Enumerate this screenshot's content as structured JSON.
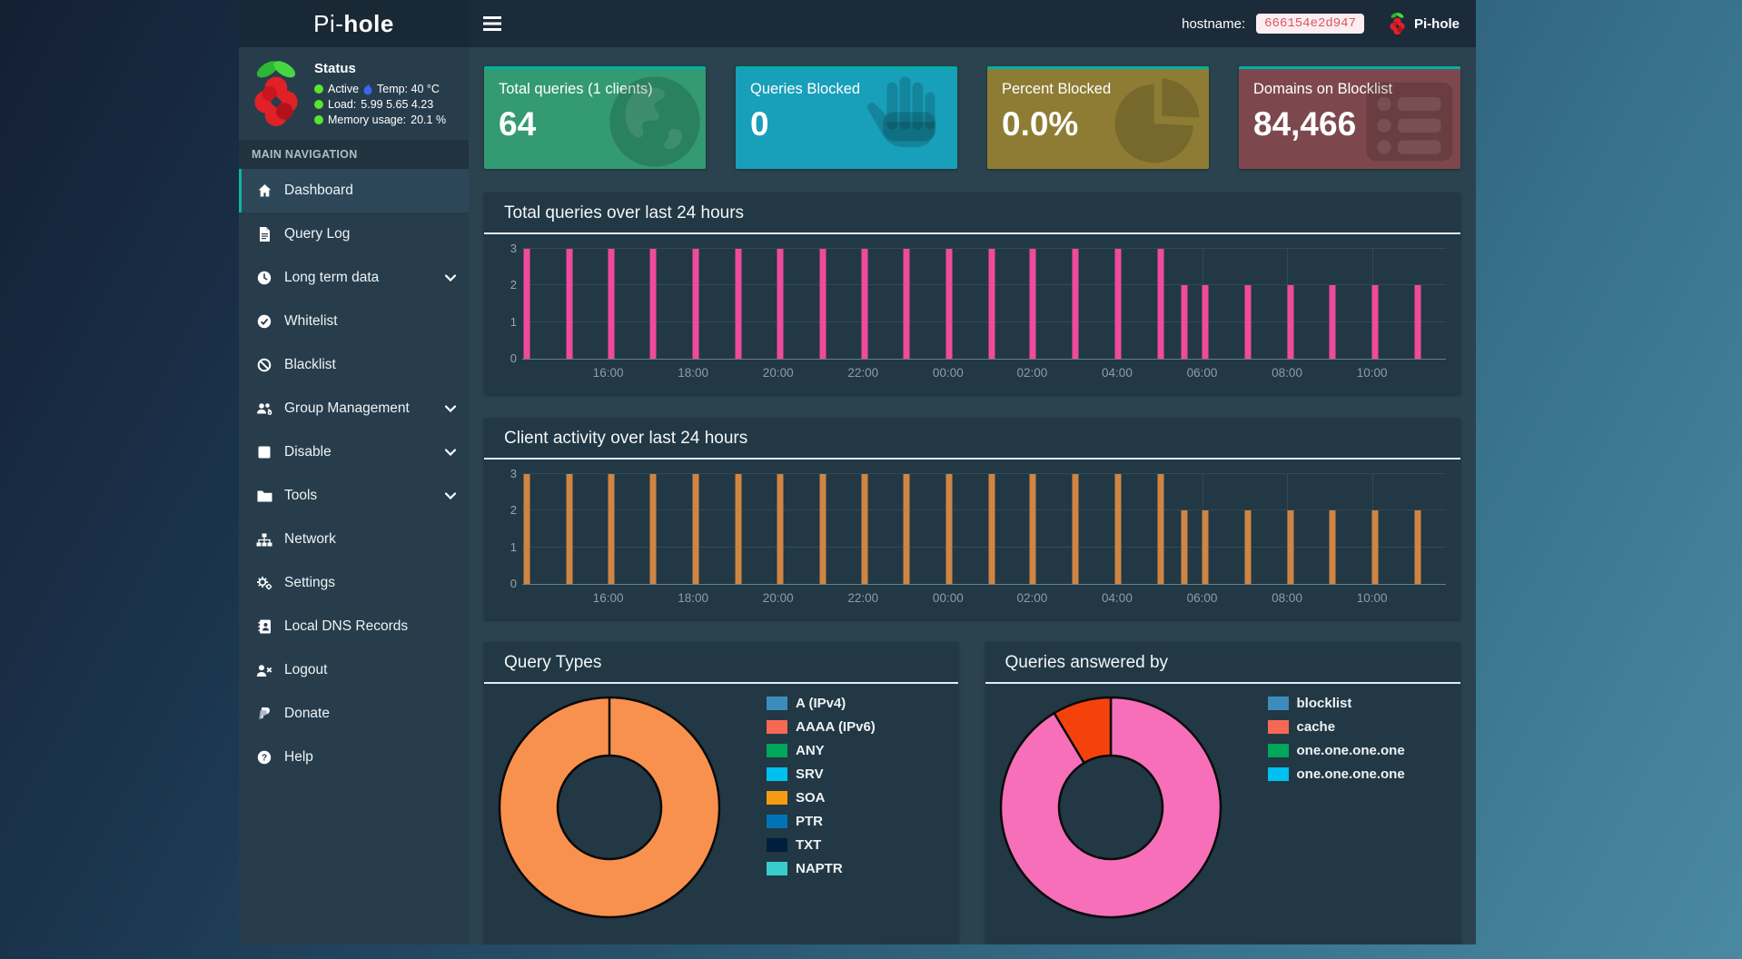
{
  "navbar": {
    "logo_prefix": "Pi-",
    "logo_bold": "hole",
    "hostname_label": "hostname:",
    "hostname_value": "666154e2d947",
    "brand": "Pi-hole"
  },
  "sidebar": {
    "status": {
      "title": "Status",
      "rows": [
        {
          "label": "Active",
          "extra": "Temp: 40 °C"
        },
        {
          "label": "Load:",
          "extra": "5.99  5.65  4.23"
        },
        {
          "label": "Memory usage:",
          "extra": "20.1 %"
        }
      ]
    },
    "section_header": "MAIN NAVIGATION",
    "items": [
      {
        "label": "Dashboard",
        "icon": "home-icon",
        "active": true
      },
      {
        "label": "Query Log",
        "icon": "file-icon"
      },
      {
        "label": "Long term data",
        "icon": "clock-icon",
        "expandable": true
      },
      {
        "label": "Whitelist",
        "icon": "check-circle-icon"
      },
      {
        "label": "Blacklist",
        "icon": "ban-icon"
      },
      {
        "label": "Group Management",
        "icon": "users-icon",
        "expandable": true
      },
      {
        "label": "Disable",
        "icon": "stop-icon",
        "expandable": true
      },
      {
        "label": "Tools",
        "icon": "folder-icon",
        "expandable": true
      },
      {
        "label": "Network",
        "icon": "sitemap-icon"
      },
      {
        "label": "Settings",
        "icon": "cogs-icon"
      },
      {
        "label": "Local DNS Records",
        "icon": "address-book-icon"
      },
      {
        "label": "Logout",
        "icon": "user-times-icon"
      },
      {
        "label": "Donate",
        "icon": "paypal-icon"
      },
      {
        "label": "Help",
        "icon": "question-circle-icon"
      }
    ]
  },
  "cards": [
    {
      "title": "Total queries (1 clients)",
      "value": "64",
      "color": "#339a72",
      "icon": "globe-icon"
    },
    {
      "title": "Queries Blocked",
      "value": "0",
      "color": "#189fba",
      "icon": "hand-icon"
    },
    {
      "title": "Percent Blocked",
      "value": "0.0%",
      "color": "#8e7c34",
      "icon": "pie-chart-icon"
    },
    {
      "title": "Domains on Blocklist",
      "value": "84,466",
      "color": "#7d484d",
      "icon": "list-icon"
    }
  ],
  "colors": {
    "accent_border": "#00b1a4",
    "active_accent": "#10b3a3",
    "status_dot": "#5ce42e",
    "panel_bg": "#223844",
    "donut_stroke": "#0a0a0a"
  },
  "chart_data": [
    {
      "type": "bar",
      "title": "Total queries over last 24 hours",
      "bar_color": "#f04a9c",
      "ylim": [
        0,
        3
      ],
      "yticks": [
        0,
        1,
        2,
        3
      ],
      "grid": true,
      "xticks": [
        "16:00",
        "18:00",
        "20:00",
        "22:00",
        "00:00",
        "02:00",
        "04:00",
        "06:00",
        "08:00",
        "10:00"
      ],
      "xtick_f": [
        0.093,
        0.185,
        0.277,
        0.369,
        0.461,
        0.552,
        0.644,
        0.736,
        0.828,
        0.92
      ],
      "bars_f": [
        0.005,
        0.051,
        0.096,
        0.142,
        0.188,
        0.234,
        0.279,
        0.325,
        0.371,
        0.416,
        0.462,
        0.508,
        0.553,
        0.599,
        0.645,
        0.691,
        0.717,
        0.739,
        0.786,
        0.832,
        0.877,
        0.923,
        0.97
      ],
      "bars_v": [
        3,
        3,
        3,
        3,
        3,
        3,
        3,
        3,
        3,
        3,
        3,
        3,
        3,
        3,
        3,
        3,
        2,
        2,
        2,
        2,
        2,
        2,
        2
      ]
    },
    {
      "type": "bar",
      "title": "Client activity over last 24 hours",
      "bar_color": "#cf8543",
      "ylim": [
        0,
        3
      ],
      "yticks": [
        0,
        1,
        2,
        3
      ],
      "grid": true,
      "xticks": [
        "16:00",
        "18:00",
        "20:00",
        "22:00",
        "00:00",
        "02:00",
        "04:00",
        "06:00",
        "08:00",
        "10:00"
      ],
      "xtick_f": [
        0.093,
        0.185,
        0.277,
        0.369,
        0.461,
        0.552,
        0.644,
        0.736,
        0.828,
        0.92
      ],
      "bars_f": [
        0.005,
        0.051,
        0.096,
        0.142,
        0.188,
        0.234,
        0.279,
        0.325,
        0.371,
        0.416,
        0.462,
        0.508,
        0.553,
        0.599,
        0.645,
        0.691,
        0.717,
        0.739,
        0.786,
        0.832,
        0.877,
        0.923,
        0.97
      ],
      "bars_v": [
        3,
        3,
        3,
        3,
        3,
        3,
        3,
        3,
        3,
        3,
        3,
        3,
        3,
        3,
        3,
        3,
        2,
        2,
        2,
        2,
        2,
        2,
        2
      ]
    },
    {
      "type": "donut",
      "title": "Query Types",
      "slices": [
        {
          "value": 100,
          "color": "#f9914e"
        }
      ],
      "legend_position": "right",
      "legend": [
        {
          "label": "A (IPv4)",
          "color": "#3c8dbc"
        },
        {
          "label": "AAAA (IPv6)",
          "color": "#f56954"
        },
        {
          "label": "ANY",
          "color": "#00a65a"
        },
        {
          "label": "SRV",
          "color": "#00c0ef"
        },
        {
          "label": "SOA",
          "color": "#f39c12"
        },
        {
          "label": "PTR",
          "color": "#0073b7"
        },
        {
          "label": "TXT",
          "color": "#001f3f"
        },
        {
          "label": "NAPTR",
          "color": "#39cccc"
        }
      ]
    },
    {
      "type": "donut",
      "title": "Queries answered by",
      "slices": [
        {
          "value": 91.4,
          "color": "#f76fb8"
        },
        {
          "value": 8.6,
          "color": "#f5420d"
        }
      ],
      "legend_position": "right",
      "legend": [
        {
          "label": "blocklist",
          "color": "#3c8dbc"
        },
        {
          "label": "cache",
          "color": "#f56954"
        },
        {
          "label": "one.one.one.one",
          "color": "#00a65a"
        },
        {
          "label": "one.one.one.one",
          "color": "#00c0ef"
        }
      ]
    }
  ]
}
